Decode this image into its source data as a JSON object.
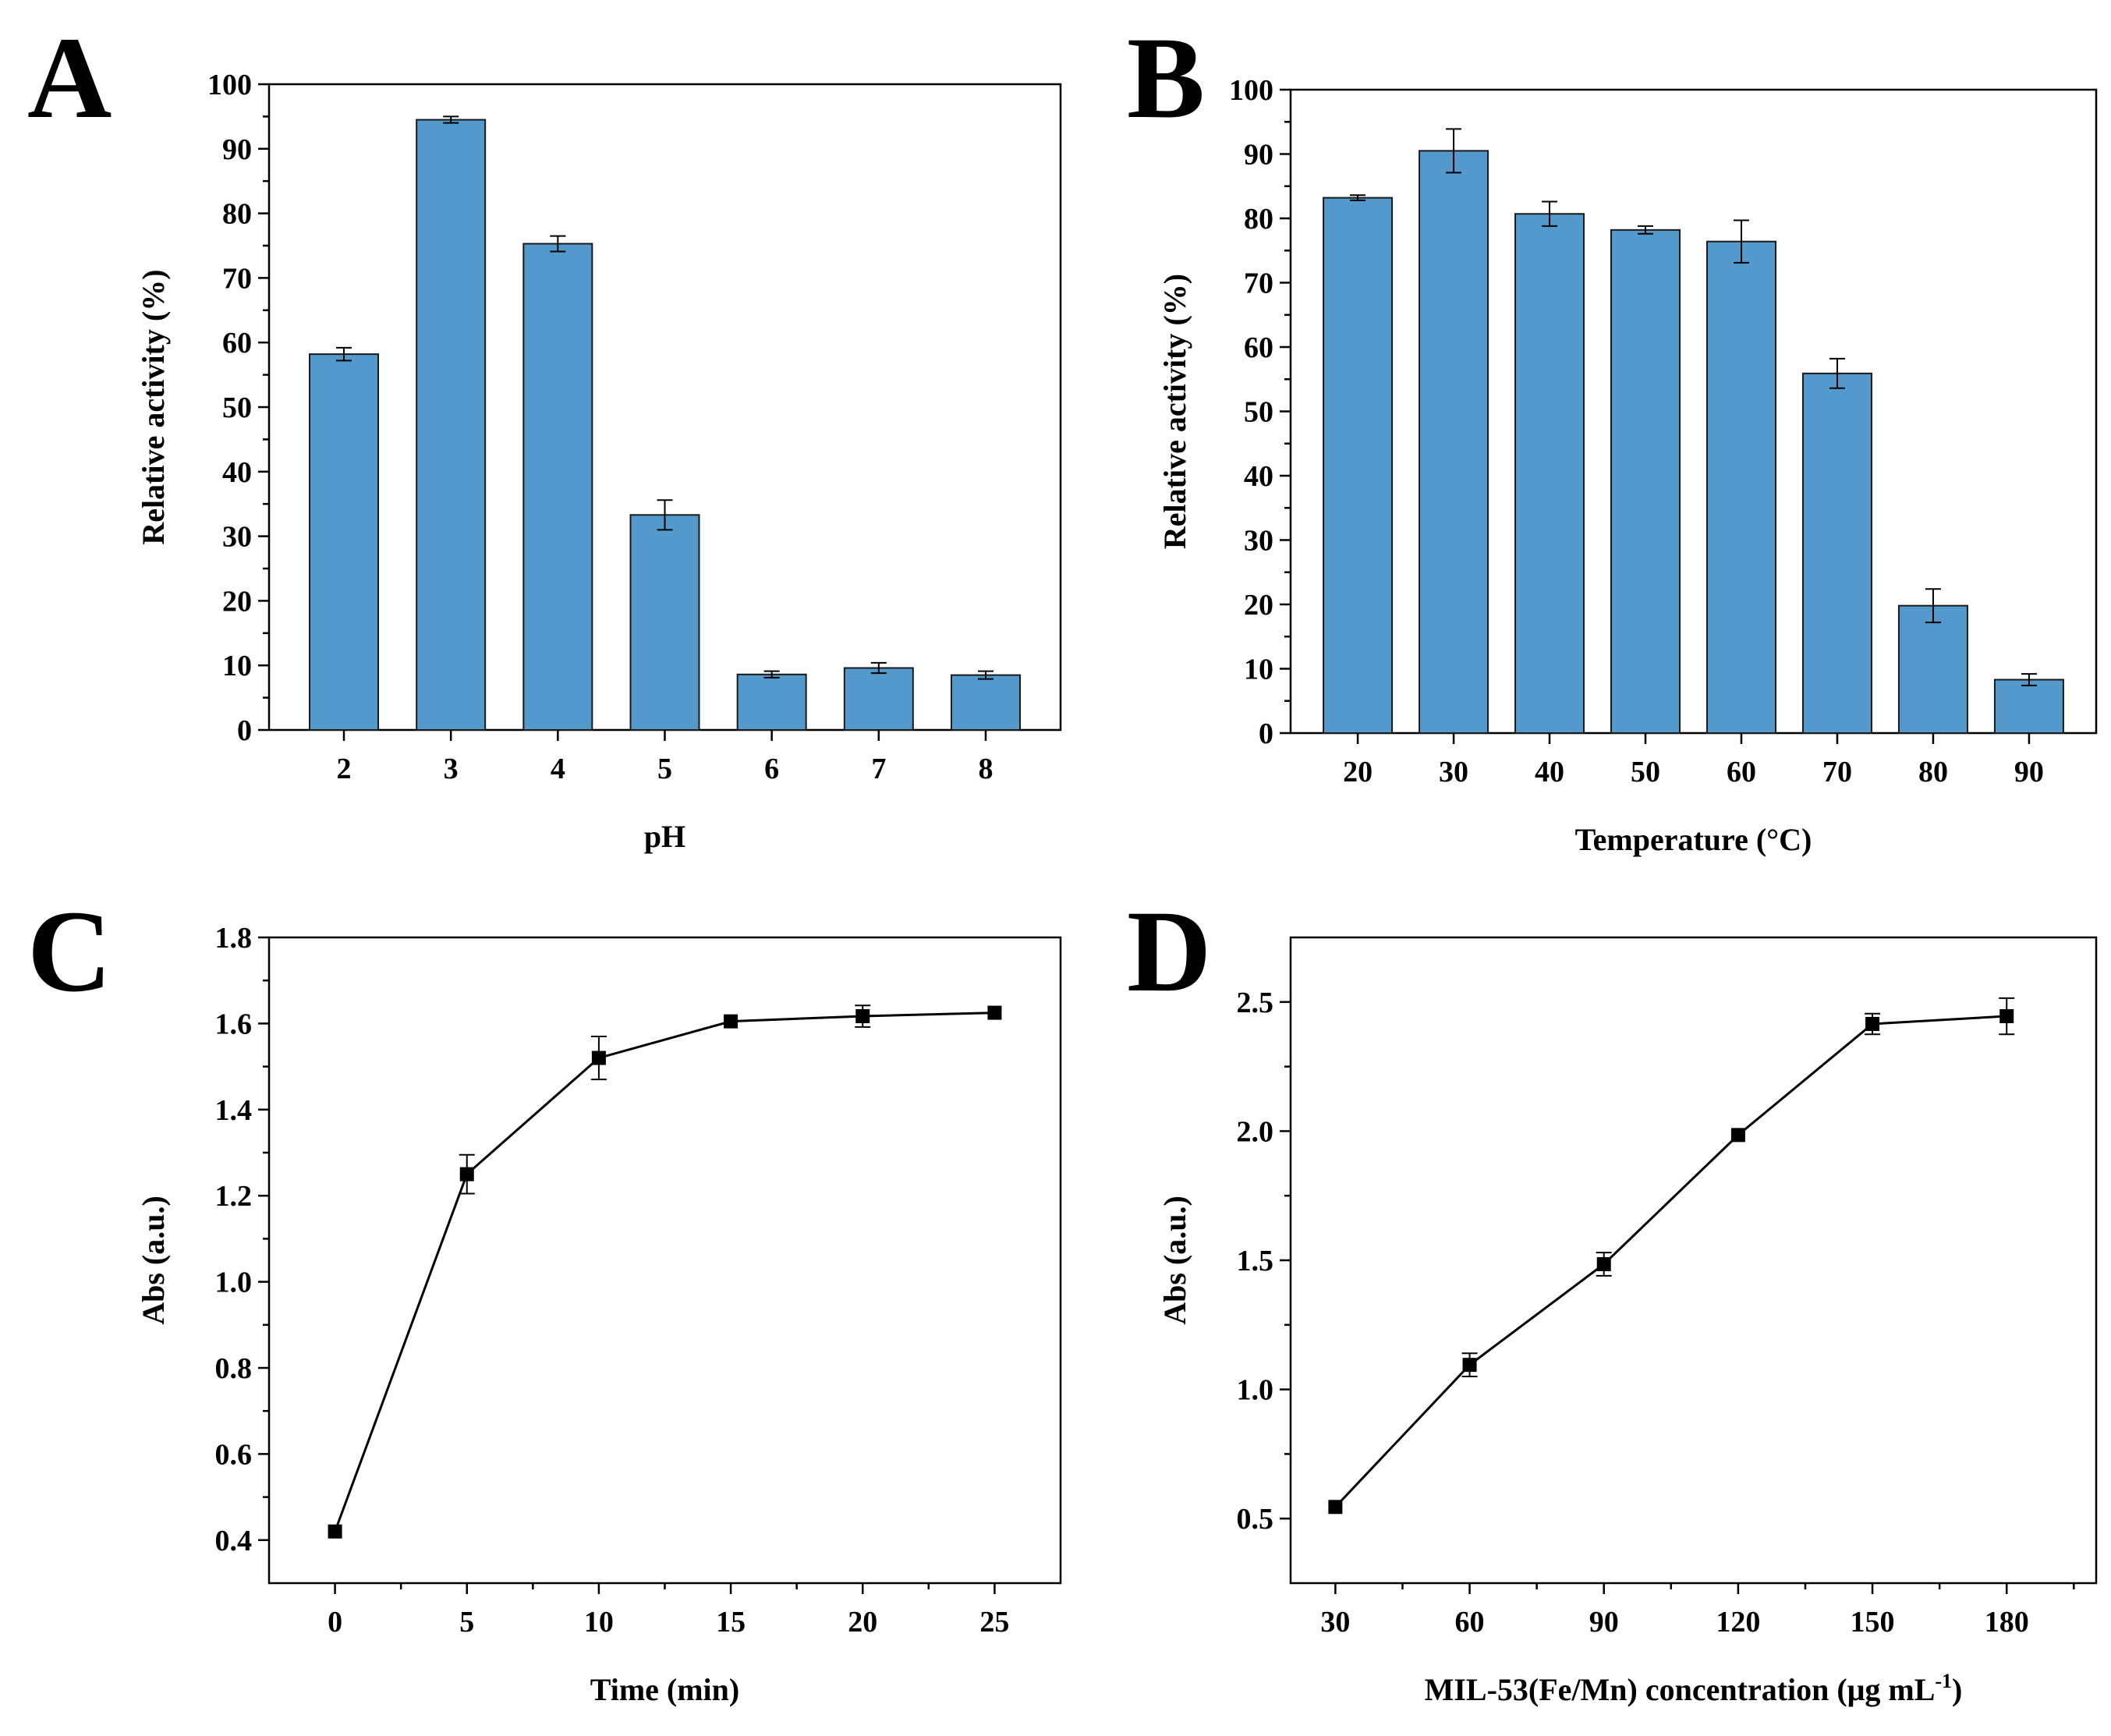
{
  "chart_data": [
    {
      "id": "A",
      "panel_label": "A",
      "type": "bar",
      "xlabel": "pH",
      "ylabel": "Relative activity (%)",
      "categories": [
        "2",
        "3",
        "4",
        "5",
        "6",
        "7",
        "8"
      ],
      "values": [
        58.2,
        94.5,
        75.3,
        33.3,
        8.6,
        9.6,
        8.5
      ],
      "errors": [
        1.0,
        0.5,
        1.2,
        2.3,
        0.5,
        0.8,
        0.6
      ],
      "ylim": [
        0,
        100
      ],
      "yticks": [
        0,
        10,
        20,
        30,
        40,
        50,
        60,
        70,
        80,
        90,
        100
      ],
      "ytick_labels": [
        "0",
        "10",
        "20",
        "30",
        "40",
        "50",
        "60",
        "70",
        "80",
        "90",
        "100"
      ],
      "color": "#5499CB"
    },
    {
      "id": "B",
      "panel_label": "B",
      "type": "bar",
      "xlabel": "Temperature (°C)",
      "ylabel": "Relative activity (%)",
      "categories": [
        "20",
        "30",
        "40",
        "50",
        "60",
        "70",
        "80",
        "90"
      ],
      "values": [
        83.2,
        90.5,
        80.7,
        78.2,
        76.4,
        55.9,
        19.8,
        8.3
      ],
      "errors": [
        0.4,
        3.4,
        1.9,
        0.6,
        3.3,
        2.3,
        2.6,
        0.9
      ],
      "ylim": [
        0,
        100
      ],
      "yticks": [
        0,
        10,
        20,
        30,
        40,
        50,
        60,
        70,
        80,
        90,
        100
      ],
      "ytick_labels": [
        "0",
        "10",
        "20",
        "30",
        "40",
        "50",
        "60",
        "70",
        "80",
        "90",
        "100"
      ],
      "color": "#5499CB"
    },
    {
      "id": "C",
      "panel_label": "C",
      "type": "line",
      "xlabel": "Time (min)",
      "ylabel": "Abs (a.u.)",
      "x": [
        0,
        5,
        10,
        15,
        20,
        25
      ],
      "y": [
        0.42,
        1.25,
        1.52,
        1.605,
        1.617,
        1.625
      ],
      "errors": [
        0.0,
        0.045,
        0.05,
        0.0,
        0.025,
        0.0
      ],
      "xlim": [
        -2.5,
        27.5
      ],
      "ylim": [
        0.3,
        1.8
      ],
      "xticks": [
        0,
        5,
        10,
        15,
        20,
        25
      ],
      "xtick_labels": [
        "0",
        "5",
        "10",
        "15",
        "20",
        "25"
      ],
      "yticks": [
        0.4,
        0.6,
        0.8,
        1.0,
        1.2,
        1.4,
        1.6,
        1.8
      ],
      "ytick_labels": [
        "0.4",
        "0.6",
        "0.8",
        "1.0",
        "1.2",
        "1.4",
        "1.6",
        "1.8"
      ]
    },
    {
      "id": "D",
      "panel_label": "D",
      "type": "line",
      "xlabel": "MIL-53(Fe/Mn) concentration (μg mL",
      "xlabel_sup": "-1",
      "xlabel_end": ")",
      "ylabel": "Abs (a.u.)",
      "x": [
        30,
        60,
        90,
        120,
        150,
        180
      ],
      "y": [
        0.545,
        1.095,
        1.485,
        1.985,
        2.415,
        2.445
      ],
      "errors": [
        0.0,
        0.045,
        0.045,
        0.0,
        0.04,
        0.07
      ],
      "xlim": [
        20,
        200
      ],
      "ylim": [
        0.25,
        2.75
      ],
      "xticks": [
        30,
        60,
        90,
        120,
        150,
        180
      ],
      "xtick_labels": [
        "30",
        "60",
        "90",
        "120",
        "150",
        "180"
      ],
      "yticks": [
        0.5,
        1.0,
        1.5,
        2.0,
        2.5
      ],
      "ytick_labels": [
        "0.5",
        "1.0",
        "1.5",
        "2.0",
        "2.5"
      ]
    }
  ]
}
